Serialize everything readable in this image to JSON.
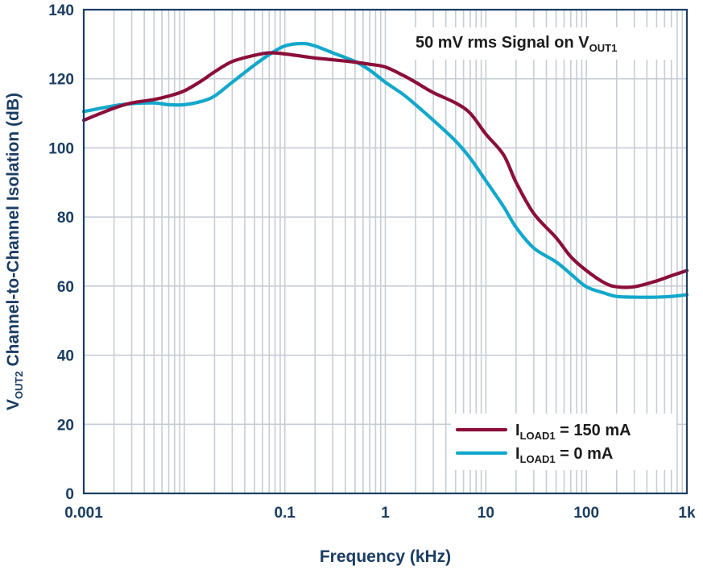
{
  "chart_data": {
    "type": "line",
    "title": "",
    "xlabel": "Frequency (kHz)",
    "ylabel": {
      "pre": "V",
      "sub": "OUT2",
      "post": " Channel-to-Channel Isolation (dB)"
    },
    "x_scale": "log",
    "xlim": [
      0.001,
      1000
    ],
    "ylim": [
      0,
      140
    ],
    "grid": true,
    "x_ticks": [
      0.001,
      0.1,
      1,
      10,
      100,
      1000
    ],
    "x_tick_labels": [
      "0.001",
      "0.1",
      "1",
      "10",
      "100",
      "1k"
    ],
    "y_ticks": [
      0,
      20,
      40,
      60,
      80,
      100,
      120,
      140
    ],
    "y_tick_labels": [
      "0",
      "20",
      "40",
      "60",
      "80",
      "100",
      "120",
      "140"
    ],
    "annotation": {
      "pre": "50 mV rms Signal on V",
      "sub": "OUT1",
      "post": ""
    },
    "legend_position": "bottom-right",
    "series": [
      {
        "name": {
          "pre": "I",
          "sub": "LOAD1",
          "post": " = 150 mA"
        },
        "color": "#8b0f3a",
        "x": [
          0.001,
          0.002,
          0.003,
          0.005,
          0.007,
          0.01,
          0.015,
          0.02,
          0.03,
          0.05,
          0.07,
          0.1,
          0.15,
          0.2,
          0.3,
          0.5,
          0.7,
          1,
          1.5,
          2,
          3,
          5,
          7,
          10,
          15,
          20,
          30,
          50,
          70,
          100,
          150,
          200,
          300,
          500,
          700,
          1000
        ],
        "y": [
          108,
          111.5,
          113,
          114,
          115,
          116.5,
          119.5,
          122,
          125,
          126.8,
          127.5,
          127.2,
          126.5,
          126,
          125.5,
          124.8,
          124.2,
          123.4,
          121,
          119,
          116,
          113,
          110,
          104,
          98,
          90,
          81,
          74,
          68.5,
          64.5,
          61,
          59.8,
          59.8,
          61.5,
          63,
          64.5
        ]
      },
      {
        "name": {
          "pre": "I",
          "sub": "LOAD1",
          "post": " = 0 mA"
        },
        "color": "#12a8cc",
        "x": [
          0.001,
          0.002,
          0.003,
          0.005,
          0.007,
          0.01,
          0.015,
          0.02,
          0.03,
          0.05,
          0.07,
          0.1,
          0.15,
          0.2,
          0.3,
          0.5,
          0.7,
          1,
          1.5,
          2,
          3,
          5,
          7,
          10,
          15,
          20,
          30,
          50,
          70,
          100,
          150,
          200,
          300,
          500,
          700,
          1000
        ],
        "y": [
          110.5,
          112.2,
          112.8,
          113,
          112.5,
          112.5,
          113.5,
          115,
          119,
          124,
          127,
          129.5,
          130.2,
          129.5,
          127.5,
          125,
          122.5,
          119,
          115.5,
          112.5,
          108,
          102,
          97,
          90.5,
          83,
          77,
          71,
          67,
          63.5,
          59.8,
          58,
          57,
          56.8,
          56.8,
          57,
          57.5
        ]
      }
    ]
  }
}
